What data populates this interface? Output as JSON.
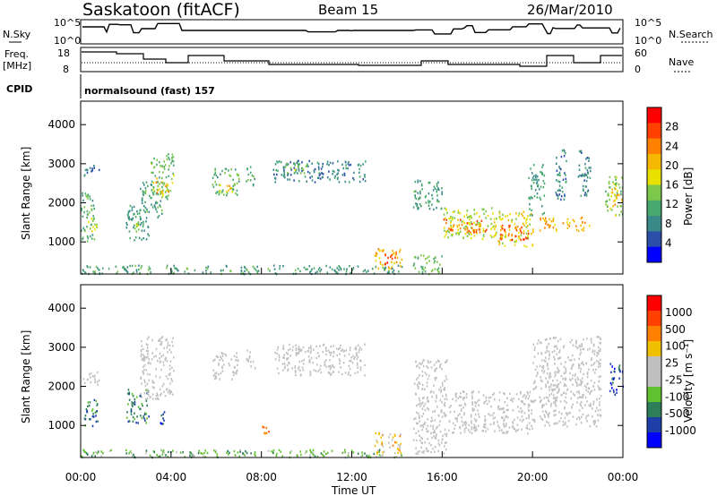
{
  "header": {
    "station": "Saskatoon (fitACF)",
    "beam": "Beam 15",
    "date": "26/Mar/2010"
  },
  "top_panels": {
    "nsky_label": "N.Sky",
    "nsearch_label": "N.Search",
    "freq_label_1": "Freq.",
    "freq_label_2": "[MHz]",
    "nave_label": "Nave",
    "cpid_label": "CPID",
    "cpid_value": "normalsound (fast) 157",
    "noise_ticks": [
      "10^5",
      "10^0"
    ],
    "freq_ticks": [
      "18",
      "8"
    ],
    "nave_ticks": [
      "60",
      "0"
    ]
  },
  "colors": {
    "power_scale": [
      "#0000ff",
      "#2b4ea8",
      "#3b8a8a",
      "#49a86e",
      "#7dc84a",
      "#e8e000",
      "#f5b800",
      "#ff8000",
      "#ff4000",
      "#ff0000"
    ],
    "velocity_scale": [
      "#0000ff",
      "#1e3fa8",
      "#2e7e5a",
      "#60c030",
      "#c0c0c0",
      "#c0c0c0",
      "#f0c000",
      "#ff8000",
      "#ff4000",
      "#ff0000"
    ],
    "ground_scatter": "#c0c0c0"
  },
  "chart_data": [
    {
      "type": "heatmap",
      "name": "power",
      "ylabel": "Slant Range [km]",
      "ylim": [
        180,
        4600
      ],
      "yticks": [
        "1000",
        "2000",
        "3000",
        "4000"
      ],
      "colorbar_label": "Power [dB]",
      "colorbar_ticks": [
        "4",
        "8",
        "12",
        "16",
        "20",
        "24",
        "28"
      ],
      "colorbar_range": [
        0,
        32
      ],
      "xlim": [
        0,
        24
      ],
      "regions": [
        {
          "t0": 0.1,
          "t1": 0.8,
          "r0": 2700,
          "r1": 3000,
          "v": 6
        },
        {
          "t0": 0.0,
          "t1": 0.6,
          "r0": 1000,
          "r1": 2300,
          "v": 11
        },
        {
          "t0": 0.3,
          "t1": 0.7,
          "r0": 1250,
          "r1": 1700,
          "v": 17
        },
        {
          "t0": 2.0,
          "t1": 3.0,
          "r0": 1050,
          "r1": 1950,
          "v": 9
        },
        {
          "t0": 2.3,
          "t1": 2.6,
          "r0": 1250,
          "r1": 1550,
          "v": 16
        },
        {
          "t0": 2.6,
          "t1": 3.6,
          "r0": 1650,
          "r1": 2550,
          "v": 10
        },
        {
          "t0": 3.1,
          "t1": 4.1,
          "r0": 2100,
          "r1": 3300,
          "v": 13
        },
        {
          "t0": 3.3,
          "t1": 3.9,
          "r0": 2250,
          "r1": 2650,
          "v": 21
        },
        {
          "t0": 5.8,
          "t1": 7.0,
          "r0": 2200,
          "r1": 2900,
          "v": 12
        },
        {
          "t0": 6.1,
          "t1": 6.8,
          "r0": 2300,
          "r1": 2500,
          "v": 20
        },
        {
          "t0": 7.3,
          "t1": 7.7,
          "r0": 2450,
          "r1": 3000,
          "v": 10
        },
        {
          "t0": 8.5,
          "t1": 12.6,
          "r0": 2550,
          "r1": 3100,
          "v": 7
        },
        {
          "t0": 9.0,
          "t1": 10.0,
          "r0": 2750,
          "r1": 3050,
          "v": 13
        },
        {
          "t0": 13.0,
          "t1": 14.2,
          "r0": 300,
          "r1": 850,
          "v": 21
        },
        {
          "t0": 13.4,
          "t1": 13.9,
          "r0": 450,
          "r1": 700,
          "v": 29
        },
        {
          "t0": 0.0,
          "t1": 14.2,
          "r0": 200,
          "r1": 420,
          "v": 10
        },
        {
          "t0": 14.7,
          "t1": 16.0,
          "r0": 1800,
          "r1": 2600,
          "v": 9
        },
        {
          "t0": 14.7,
          "t1": 16.0,
          "r0": 200,
          "r1": 700,
          "v": 13
        },
        {
          "t0": 16.0,
          "t1": 18.2,
          "r0": 1100,
          "r1": 1900,
          "v": 16
        },
        {
          "t0": 16.0,
          "t1": 18.0,
          "r0": 1250,
          "r1": 1600,
          "v": 25
        },
        {
          "t0": 18.2,
          "t1": 20.0,
          "r0": 900,
          "r1": 1800,
          "v": 18
        },
        {
          "t0": 18.5,
          "t1": 19.8,
          "r0": 1050,
          "r1": 1450,
          "v": 27
        },
        {
          "t0": 19.8,
          "t1": 20.5,
          "r0": 1700,
          "r1": 3000,
          "v": 9
        },
        {
          "t0": 20.3,
          "t1": 22.5,
          "r0": 1300,
          "r1": 1650,
          "v": 22
        },
        {
          "t0": 21.0,
          "t1": 21.5,
          "r0": 2000,
          "r1": 3400,
          "v": 7
        },
        {
          "t0": 22.0,
          "t1": 22.6,
          "r0": 2200,
          "r1": 3400,
          "v": 8
        },
        {
          "t0": 23.2,
          "t1": 24.0,
          "r0": 1700,
          "r1": 2700,
          "v": 14
        },
        {
          "t0": 23.5,
          "t1": 24.0,
          "r0": 1900,
          "r1": 2400,
          "v": 21
        }
      ]
    },
    {
      "type": "heatmap",
      "name": "velocity",
      "ylabel": "Slant Range [km]",
      "ylim": [
        180,
        4600
      ],
      "yticks": [
        "1000",
        "2000",
        "3000",
        "4000"
      ],
      "colorbar_label": "Velocity [m s⁻¹]",
      "colorbar_ticks": [
        "1000",
        "500",
        "100",
        "25",
        "-25",
        "-100",
        "-500",
        "-1000"
      ],
      "xlim": [
        0,
        24
      ],
      "xticks": [
        "00:00",
        "04:00",
        "08:00",
        "12:00",
        "16:00",
        "20:00",
        "00:00"
      ],
      "xlabel": "Time UT",
      "regions": [
        {
          "t0": 0.1,
          "t1": 0.8,
          "r0": 2000,
          "r1": 2400,
          "v": 4,
          "cls": "g"
        },
        {
          "t0": 0.1,
          "t1": 0.8,
          "r0": 1000,
          "r1": 1700,
          "v": 2
        },
        {
          "t0": 2.0,
          "t1": 3.0,
          "r0": 1050,
          "r1": 1950,
          "v": 2
        },
        {
          "t0": 2.6,
          "t1": 4.1,
          "r0": 1700,
          "r1": 3300,
          "v": 4,
          "cls": "g"
        },
        {
          "t0": 3.5,
          "t1": 3.7,
          "r0": 1000,
          "r1": 1400,
          "v": 1
        },
        {
          "t0": 5.8,
          "t1": 7.0,
          "r0": 2200,
          "r1": 2900,
          "v": 4,
          "cls": "g"
        },
        {
          "t0": 7.3,
          "t1": 7.7,
          "r0": 2450,
          "r1": 3000,
          "v": 4,
          "cls": "g"
        },
        {
          "t0": 8.5,
          "t1": 12.6,
          "r0": 2300,
          "r1": 3100,
          "v": 4,
          "cls": "g"
        },
        {
          "t0": 8.0,
          "t1": 8.3,
          "r0": 800,
          "r1": 1100,
          "v": 7
        },
        {
          "t0": 13.0,
          "t1": 14.2,
          "r0": 300,
          "r1": 850,
          "v": 6
        },
        {
          "t0": 14.7,
          "t1": 16.2,
          "r0": 300,
          "r1": 2700,
          "v": 4,
          "cls": "g"
        },
        {
          "t0": 16.2,
          "t1": 20.0,
          "r0": 800,
          "r1": 1900,
          "v": 4,
          "cls": "g"
        },
        {
          "t0": 20.0,
          "t1": 23.0,
          "r0": 1000,
          "r1": 3300,
          "v": 4,
          "cls": "g"
        },
        {
          "t0": 23.4,
          "t1": 24.0,
          "r0": 1800,
          "r1": 2600,
          "v": 1
        },
        {
          "t0": 0.0,
          "t1": 14.2,
          "r0": 200,
          "r1": 400,
          "v": 3
        }
      ]
    }
  ]
}
